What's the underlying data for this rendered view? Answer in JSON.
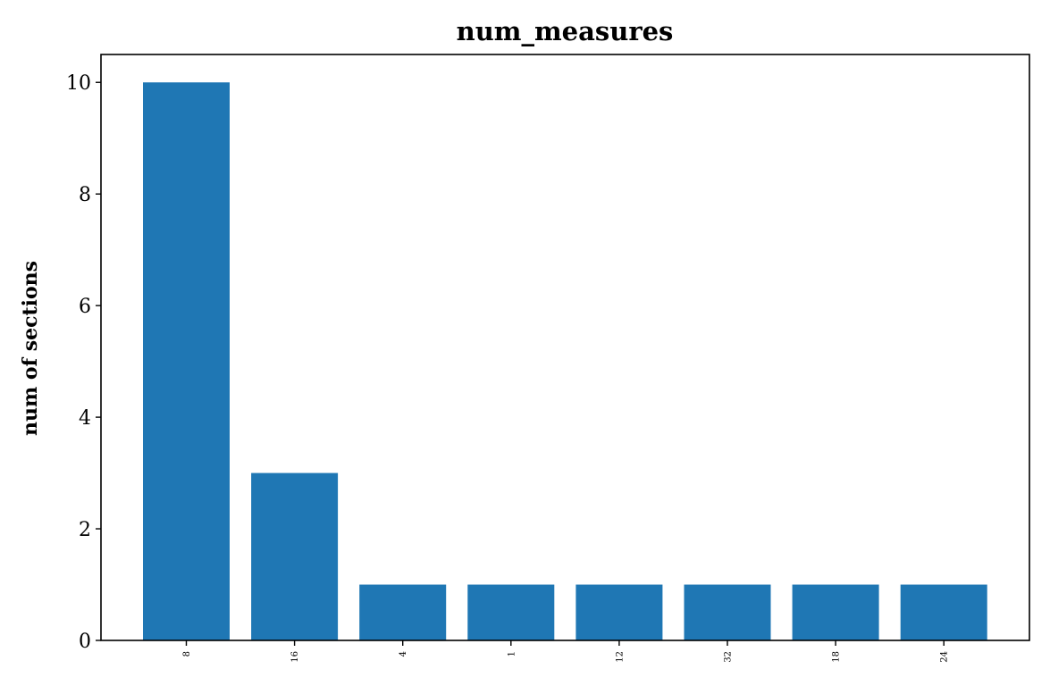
{
  "chart_data": {
    "type": "bar",
    "title": "num_measures",
    "xlabel": "",
    "ylabel": "num of sections",
    "categories": [
      "8",
      "16",
      "4",
      "1",
      "12",
      "32",
      "18",
      "24"
    ],
    "values": [
      10,
      3,
      1,
      1,
      1,
      1,
      1,
      1
    ],
    "ylim": [
      0,
      10.5
    ],
    "yticks": [
      0,
      2,
      4,
      6,
      8,
      10
    ],
    "bar_color": "#1f77b4",
    "grid": false,
    "legend": "none"
  }
}
